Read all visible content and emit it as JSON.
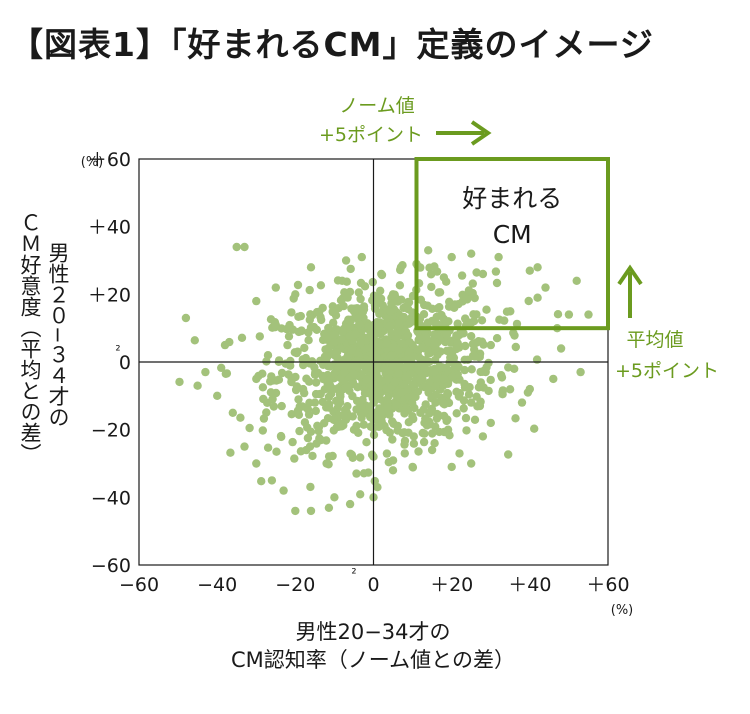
{
  "figure_title": "【図表1】「好まれるCM」定義のイメージ",
  "colors": {
    "point": "#a3c27b",
    "box": "#6b9b1f",
    "annotation": "#6b9b1f",
    "axis": "#1a1a1a"
  },
  "chart_data": {
    "type": "scatter",
    "title": "「好まれるCM」定義のイメージ",
    "xlabel_lines": [
      "男性20−34才の",
      "CM認知率（ノーム値との差）"
    ],
    "ylabel_columns": [
      "男性２０−３４才の",
      "ＣＭ好意度（平均との差）"
    ],
    "x_unit": "(%)",
    "y_unit": "(%)",
    "xlim": [
      -60,
      60
    ],
    "ylim": [
      -60,
      60
    ],
    "x_ticks": [
      {
        "value": -60,
        "label": "−60"
      },
      {
        "value": -40,
        "label": "−40"
      },
      {
        "value": -20,
        "label": "−20"
      },
      {
        "value": 0,
        "label": "0"
      },
      {
        "value": 20,
        "label": "＋20"
      },
      {
        "value": 40,
        "label": "＋40"
      },
      {
        "value": 60,
        "label": "＋60"
      }
    ],
    "y_ticks": [
      {
        "value": 60,
        "label": "＋60"
      },
      {
        "value": 40,
        "label": "＋40"
      },
      {
        "value": 20,
        "label": "＋20"
      },
      {
        "value": 0,
        "label": "0"
      },
      {
        "value": -20,
        "label": "−20"
      },
      {
        "value": -40,
        "label": "−40"
      },
      {
        "value": -60,
        "label": "−60"
      }
    ],
    "zero_mark": "²",
    "grid": false,
    "highlight_region": {
      "label_lines": [
        "好まれる",
        "CM"
      ],
      "x_range": [
        11,
        60
      ],
      "y_range": [
        10,
        60
      ]
    },
    "annotations": {
      "x_shift": {
        "lines": [
          "ノーム値",
          "+5ポイント"
        ],
        "direction": "right"
      },
      "y_shift": {
        "lines": [
          "平均値",
          "+5ポイント"
        ],
        "direction": "up"
      }
    },
    "point_cloud": {
      "count": 1100,
      "center": [
        3,
        -1
      ],
      "spread": [
        14,
        12
      ],
      "correlation": 0.15,
      "x_extent": [
        -50,
        55
      ],
      "y_extent": [
        -45,
        35
      ]
    },
    "points": [
      [
        -48,
        13
      ],
      [
        -35,
        34
      ],
      [
        -33,
        34
      ],
      [
        -25,
        11
      ],
      [
        -25,
        22
      ],
      [
        -20,
        20
      ],
      [
        -16,
        28
      ],
      [
        -13,
        16
      ],
      [
        -8,
        24
      ],
      [
        -7,
        30
      ],
      [
        -3,
        31
      ],
      [
        2,
        26
      ],
      [
        7,
        28
      ],
      [
        11,
        29
      ],
      [
        14,
        33
      ],
      [
        18,
        25
      ],
      [
        20,
        31
      ],
      [
        25,
        32
      ],
      [
        28,
        26
      ],
      [
        32,
        31
      ],
      [
        40,
        27
      ],
      [
        42,
        19
      ],
      [
        44,
        22
      ],
      [
        47,
        10
      ],
      [
        50,
        14
      ],
      [
        52,
        24
      ],
      [
        55,
        14
      ],
      [
        53,
        -3
      ],
      [
        48,
        4
      ],
      [
        46,
        -5
      ],
      [
        40,
        -8
      ],
      [
        36,
        -2
      ],
      [
        33,
        -9
      ],
      [
        30,
        -18
      ],
      [
        28,
        -22
      ],
      [
        25,
        -30
      ],
      [
        22,
        -27
      ],
      [
        20,
        -31
      ],
      [
        15,
        -26
      ],
      [
        10,
        -31
      ],
      [
        8,
        -27
      ],
      [
        1,
        -37
      ],
      [
        0,
        -40
      ],
      [
        -6,
        -42
      ],
      [
        -10,
        -40
      ],
      [
        -16,
        -44
      ],
      [
        -20,
        -44
      ],
      [
        -23,
        -38
      ],
      [
        -26,
        -35
      ],
      [
        -30,
        -30
      ],
      [
        -33,
        -25
      ],
      [
        -36,
        -15
      ],
      [
        -40,
        -10
      ],
      [
        -43,
        -3
      ],
      [
        -38,
        5
      ],
      [
        -30,
        -5
      ],
      [
        -27,
        2
      ],
      [
        -22,
        5
      ],
      [
        -18,
        -8
      ],
      [
        -15,
        -12
      ],
      [
        -10,
        8
      ],
      [
        -5,
        15
      ],
      [
        0,
        18
      ],
      [
        5,
        20
      ],
      [
        10,
        5
      ],
      [
        15,
        12
      ],
      [
        18,
        -5
      ],
      [
        22,
        8
      ],
      [
        25,
        -12
      ],
      [
        30,
        5
      ],
      [
        -5,
        -20
      ],
      [
        0,
        -28
      ],
      [
        5,
        -32
      ],
      [
        -12,
        -30
      ],
      [
        12,
        -15
      ],
      [
        35,
        15
      ],
      [
        38,
        -12
      ],
      [
        -45,
        -7
      ],
      [
        -30,
        18
      ],
      [
        42,
        28
      ]
    ]
  }
}
